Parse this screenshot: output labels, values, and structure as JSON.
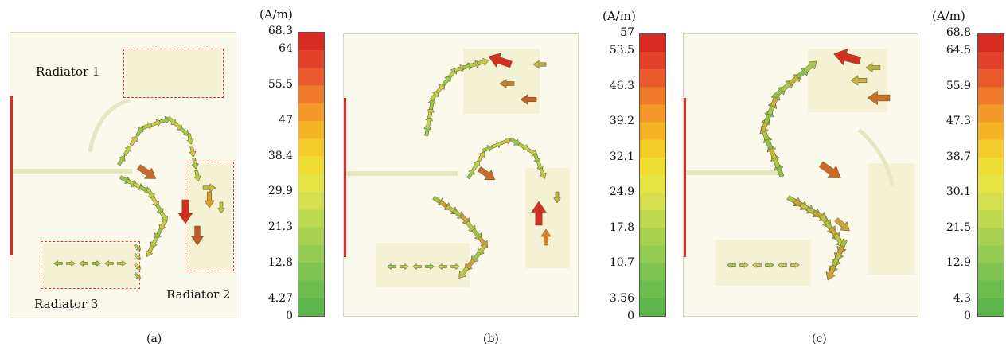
{
  "colormap": [
    "#d82b22",
    "#e2412a",
    "#ea5a2c",
    "#ef7a2a",
    "#f39a2a",
    "#f5b428",
    "#f3cb2a",
    "#efdc33",
    "#e6e344",
    "#d4e04f",
    "#bfd950",
    "#a9d252",
    "#94cb52",
    "#7fc450",
    "#6cbd4e",
    "#5cb64c"
  ],
  "panels": [
    {
      "caption": "(a)",
      "unit": "(A/m)",
      "ticks": [
        "68.3",
        "64",
        "55.5",
        "47",
        "38.4",
        "29.9",
        "21.3",
        "12.8",
        "4.27",
        "0"
      ],
      "labels": {
        "radiator1": "Radiator 1",
        "radiator2": "Radiator 2",
        "radiator3": "Radiator 3"
      }
    },
    {
      "caption": "(b)",
      "unit": "(A/m)",
      "ticks": [
        "57",
        "53.5",
        "46.3",
        "39.2",
        "32.1",
        "24.9",
        "17.8",
        "10.7",
        "3.56",
        "0"
      ]
    },
    {
      "caption": "(c)",
      "unit": "(A/m)",
      "ticks": [
        "68.8",
        "64.5",
        "55.9",
        "47.3",
        "38.7",
        "30.1",
        "21.5",
        "12.9",
        "4.3",
        "0"
      ]
    }
  ]
}
